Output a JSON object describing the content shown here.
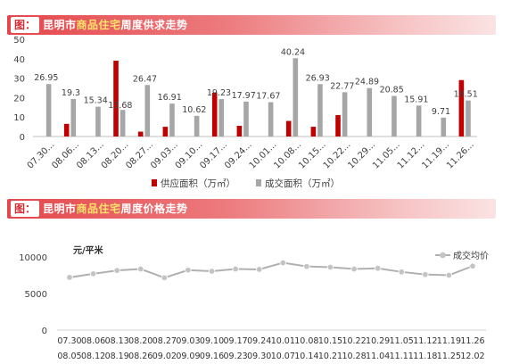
{
  "chart_data": [
    {
      "type": "bar",
      "title_prefix": "图：",
      "title_a": "昆明市",
      "title_hl": "商品住宅",
      "title_b": "周度供求走势",
      "categories": [
        "07.30-08.05",
        "08.06-08.12",
        "08.13-08.19",
        "08.20-08.26",
        "08.27-09.02",
        "09.03-09.09",
        "09.10-09.16",
        "09.17-09.23",
        "09.24-09.30",
        "10.01-10.07",
        "10.08-10.14",
        "10.15-10.21",
        "10.22-10.28",
        "10.29-11.04",
        "11.05-11.11",
        "11.12-11.18",
        "11.19-11.25",
        "11.26-12.02"
      ],
      "tick_labels": [
        "07.30...",
        "08.06...",
        "08.13...",
        "08.20...",
        "08.27...",
        "09.03...",
        "09.10...",
        "09.17...",
        "09.24...",
        "10.01...",
        "10.08...",
        "10.15...",
        "10.22...",
        "10.29...",
        "11.05...",
        "11.12...",
        "11.19...",
        "11.26..."
      ],
      "series": [
        {
          "name": "供应面积（万㎡）",
          "color": "#c00000",
          "values": [
            0,
            6.5,
            0,
            39,
            2.5,
            5,
            0,
            22.5,
            5.5,
            0,
            8,
            5,
            11,
            0,
            0,
            0,
            0,
            29
          ]
        },
        {
          "name": "成交面积（万㎡）",
          "color": "#a6a6a6",
          "values": [
            26.95,
            19.3,
            15.34,
            13.68,
            26.47,
            16.91,
            10.62,
            19.23,
            17.97,
            17.67,
            40.24,
            26.93,
            22.77,
            24.89,
            20.85,
            15.91,
            9.71,
            18.51
          ],
          "labels": [
            "26.95",
            "19.3",
            "15.34",
            "13.68",
            "26.47",
            "16.91",
            "10.62",
            "19.23",
            "17.97",
            "17.67",
            "40.24",
            "26.93",
            "22.77",
            "24.89",
            "20.85",
            "15.91",
            "9.71",
            "18.51"
          ]
        }
      ],
      "ylim": [
        0,
        50
      ],
      "yticks": [
        "0",
        "10",
        "20",
        "30",
        "40",
        "50"
      ],
      "grid": false,
      "legend": "bottom"
    },
    {
      "type": "line",
      "title_prefix": "图：",
      "title_a": "昆明市",
      "title_hl": "商品住宅",
      "title_b": "周度价格走势",
      "unit_label": "元/平米",
      "categories_top": [
        "07.30",
        "08.06",
        "08.13",
        "08.20",
        "08.27",
        "09.03",
        "09.10",
        "09.17",
        "09.24",
        "10.01",
        "10.08",
        "10.15",
        "10.22",
        "10.29",
        "11.05",
        "11.12",
        "11.19",
        "11.26"
      ],
      "categories_bottom": [
        "08.05",
        "08.12",
        "08.19",
        "08.26",
        "09.02",
        "09.09",
        "09.16",
        "09.23",
        "09.30",
        "10.07",
        "10.14",
        "10.21",
        "10.28",
        "11.04",
        "11.11",
        "11.18",
        "11.25",
        "12.02"
      ],
      "series": [
        {
          "name": "成交均价",
          "color": "#b0b0b0",
          "values": [
            7200,
            7700,
            8150,
            8350,
            7150,
            8200,
            8050,
            8350,
            8300,
            9200,
            8700,
            8600,
            8350,
            8450,
            7950,
            7600,
            7500,
            8750
          ]
        }
      ],
      "ylim": [
        0,
        10000
      ],
      "yticks": [
        "0",
        "5000",
        "10000"
      ],
      "grid": false,
      "legend": "top-right"
    }
  ]
}
